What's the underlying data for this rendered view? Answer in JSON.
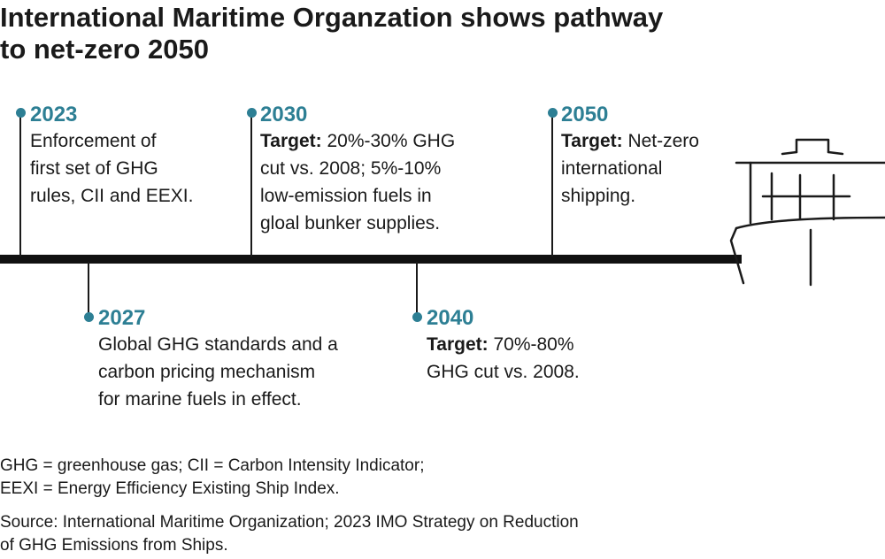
{
  "title": {
    "line1": "International Maritime Organzation shows pathway",
    "line2": "to net-zero 2050"
  },
  "colors": {
    "accent": "#2d7f94",
    "ink": "#1a1a1a"
  },
  "milestones": [
    {
      "year": "2023",
      "lead": "",
      "lines": [
        "Enforcement of",
        "first set of GHG",
        "rules, CII and EEXI."
      ]
    },
    {
      "year": "2027",
      "lead": "",
      "lines": [
        "Global GHG standards and a",
        "carbon pricing mechanism",
        "for marine fuels in effect."
      ]
    },
    {
      "year": "2030",
      "lead": "Target:",
      "lines": [
        " 20%-30% GHG",
        "cut vs. 2008; 5%-10%",
        "low-emission fuels in",
        "gloal bunker supplies."
      ]
    },
    {
      "year": "2040",
      "lead": "Target:",
      "lines": [
        " 70%-80%",
        "GHG cut vs. 2008."
      ]
    },
    {
      "year": "2050",
      "lead": "Target:",
      "lines": [
        " Net-zero",
        "international",
        "shipping."
      ]
    }
  ],
  "icons": {
    "ship": "ship-icon"
  },
  "footnotes": {
    "abbrev_line1": "GHG = greenhouse gas; CII = Carbon Intensity Indicator;",
    "abbrev_line2": "EEXI = Energy Efficiency Existing Ship Index.",
    "source_line1": "Source: International Maritime Organization; 2023 IMO Strategy on Reduction",
    "source_line2": "of GHG Emissions from Ships."
  }
}
